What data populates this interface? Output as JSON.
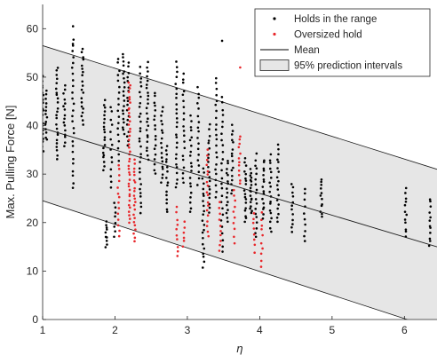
{
  "chart_data": {
    "type": "scatter",
    "xlabel": "η",
    "ylabel": "Max. Pulling Force [N]",
    "xlim": [
      1,
      6.45
    ],
    "ylim": [
      0,
      65
    ],
    "xticks": [
      1,
      2,
      3,
      4,
      5,
      6
    ],
    "yticks": [
      0,
      10,
      20,
      30,
      40,
      50,
      60
    ],
    "grid": false,
    "legend_position": "top-right",
    "legend": [
      {
        "label": "Holds in the range",
        "marker": "dot",
        "color": "#000000"
      },
      {
        "label": "Oversized hold",
        "marker": "dot",
        "color": "#e8262a"
      },
      {
        "label": "Mean",
        "marker": "line",
        "color": "#000000"
      },
      {
        "label": "95% prediction intervals",
        "marker": "patch",
        "color": "#e6e6e6"
      }
    ],
    "mean_line": {
      "x": [
        1,
        6.45
      ],
      "y": [
        39.5,
        15.0
      ]
    },
    "prediction_interval": {
      "upper": {
        "x": [
          1,
          6.45
        ],
        "y": [
          56.5,
          31.0
        ]
      },
      "lower": {
        "x": [
          1,
          6.45
        ],
        "y": [
          24.5,
          -2.0
        ]
      }
    },
    "clusters": [
      {
        "series": "Holds in the range",
        "x": 1.0,
        "y_range": [
          35,
          50
        ],
        "n": 20
      },
      {
        "series": "Holds in the range",
        "x": 1.05,
        "y_range": [
          37,
          47
        ],
        "n": 14
      },
      {
        "series": "Holds in the range",
        "x": 1.2,
        "y_range": [
          33,
          52
        ],
        "n": 24
      },
      {
        "series": "Holds in the range",
        "x": 1.3,
        "y_range": [
          36,
          48
        ],
        "n": 16
      },
      {
        "series": "Holds in the range",
        "x": 1.42,
        "y_range": [
          27,
          58
        ],
        "n": 26
      },
      {
        "series": "Holds in the range",
        "x": 1.55,
        "y_range": [
          40,
          56
        ],
        "n": 20
      },
      {
        "series": "Holds in the range",
        "x": 1.85,
        "y_range": [
          31,
          45
        ],
        "n": 20
      },
      {
        "series": "Holds in the range",
        "x": 1.88,
        "y_range": [
          15,
          20
        ],
        "n": 10
      },
      {
        "series": "Holds in the range",
        "x": 1.95,
        "y_range": [
          27,
          44
        ],
        "n": 14
      },
      {
        "series": "Holds in the range",
        "x": 2.0,
        "y_range": [
          17,
          24
        ],
        "n": 8
      },
      {
        "series": "Holds in the range",
        "x": 2.05,
        "y_range": [
          33,
          54
        ],
        "n": 18
      },
      {
        "series": "Holds in the range",
        "x": 2.12,
        "y_range": [
          38,
          55
        ],
        "n": 20
      },
      {
        "series": "Holds in the range",
        "x": 2.18,
        "y_range": [
          36,
          53
        ],
        "n": 18
      },
      {
        "series": "Oversized hold",
        "x": 2.05,
        "y_range": [
          17,
          32
        ],
        "n": 14
      },
      {
        "series": "Oversized hold",
        "x": 2.2,
        "y_range": [
          20,
          49
        ],
        "n": 40
      },
      {
        "series": "Oversized hold",
        "x": 2.27,
        "y_range": [
          16,
          33
        ],
        "n": 22
      },
      {
        "series": "Holds in the range",
        "x": 2.35,
        "y_range": [
          22,
          52
        ],
        "n": 30
      },
      {
        "series": "Holds in the range",
        "x": 2.45,
        "y_range": [
          33,
          53
        ],
        "n": 24
      },
      {
        "series": "Holds in the range",
        "x": 2.55,
        "y_range": [
          30,
          47
        ],
        "n": 18
      },
      {
        "series": "Holds in the range",
        "x": 2.65,
        "y_range": [
          28,
          44
        ],
        "n": 18
      },
      {
        "series": "Holds in the range",
        "x": 2.72,
        "y_range": [
          22,
          36
        ],
        "n": 16
      },
      {
        "series": "Holds in the range",
        "x": 2.85,
        "y_range": [
          27,
          53
        ],
        "n": 26
      },
      {
        "series": "Holds in the range",
        "x": 2.95,
        "y_range": [
          28,
          51
        ],
        "n": 20
      },
      {
        "series": "Oversized hold",
        "x": 2.86,
        "y_range": [
          13,
          23
        ],
        "n": 10
      },
      {
        "series": "Oversized hold",
        "x": 2.95,
        "y_range": [
          15,
          20
        ],
        "n": 6
      },
      {
        "series": "Holds in the range",
        "x": 3.05,
        "y_range": [
          22,
          42
        ],
        "n": 20
      },
      {
        "series": "Holds in the range",
        "x": 3.15,
        "y_range": [
          28,
          48
        ],
        "n": 18
      },
      {
        "series": "Holds in the range",
        "x": 3.22,
        "y_range": [
          11,
          31
        ],
        "n": 22
      },
      {
        "series": "Holds in the range",
        "x": 3.3,
        "y_range": [
          22,
          40
        ],
        "n": 20
      },
      {
        "series": "Holds in the range",
        "x": 3.4,
        "y_range": [
          25,
          50
        ],
        "n": 22
      },
      {
        "series": "Holds in the range",
        "x": 3.48,
        "y_range": [
          14,
          46
        ],
        "n": 26
      },
      {
        "series": "Oversized hold",
        "x": 3.28,
        "y_range": [
          17,
          35
        ],
        "n": 18
      },
      {
        "series": "Oversized hold",
        "x": 3.45,
        "y_range": [
          14,
          24
        ],
        "n": 10
      },
      {
        "series": "Holds in the range",
        "x": 3.55,
        "y_range": [
          20,
          33
        ],
        "n": 16
      },
      {
        "series": "Holds in the range",
        "x": 3.62,
        "y_range": [
          26,
          40
        ],
        "n": 16
      },
      {
        "series": "Oversized hold",
        "x": 3.65,
        "y_range": [
          16,
          27
        ],
        "n": 10
      },
      {
        "series": "Oversized hold",
        "x": 3.72,
        "y_range": [
          28,
          38
        ],
        "n": 12
      },
      {
        "series": "Holds in the range",
        "x": 3.8,
        "y_range": [
          20,
          33
        ],
        "n": 18
      },
      {
        "series": "Holds in the range",
        "x": 3.88,
        "y_range": [
          22,
          31
        ],
        "n": 18
      },
      {
        "series": "Holds in the range",
        "x": 3.95,
        "y_range": [
          17,
          34
        ],
        "n": 18
      },
      {
        "series": "Oversized hold",
        "x": 3.92,
        "y_range": [
          14,
          22
        ],
        "n": 8
      },
      {
        "series": "Oversized hold",
        "x": 4.03,
        "y_range": [
          11,
          22
        ],
        "n": 10
      },
      {
        "series": "Holds in the range",
        "x": 4.05,
        "y_range": [
          21,
          33
        ],
        "n": 16
      },
      {
        "series": "Holds in the range",
        "x": 4.15,
        "y_range": [
          18,
          34
        ],
        "n": 18
      },
      {
        "series": "Holds in the range",
        "x": 4.25,
        "y_range": [
          20,
          36
        ],
        "n": 18
      },
      {
        "series": "Holds in the range",
        "x": 4.45,
        "y_range": [
          18,
          28
        ],
        "n": 12
      },
      {
        "series": "Holds in the range",
        "x": 4.62,
        "y_range": [
          16,
          27
        ],
        "n": 10
      },
      {
        "series": "Holds in the range",
        "x": 4.85,
        "y_range": [
          21,
          29
        ],
        "n": 12
      },
      {
        "series": "Holds in the range",
        "x": 6.02,
        "y_range": [
          17,
          27
        ],
        "n": 12
      },
      {
        "series": "Holds in the range",
        "x": 6.35,
        "y_range": [
          15,
          25
        ],
        "n": 12
      }
    ],
    "isolated_points": [
      {
        "series": "Holds in the range",
        "x": 1.42,
        "y": 60.5
      },
      {
        "series": "Holds in the range",
        "x": 3.48,
        "y": 57.5
      },
      {
        "series": "Holds in the range",
        "x": 1.42,
        "y": 56.5
      },
      {
        "series": "Oversized hold",
        "x": 3.73,
        "y": 52
      }
    ]
  }
}
